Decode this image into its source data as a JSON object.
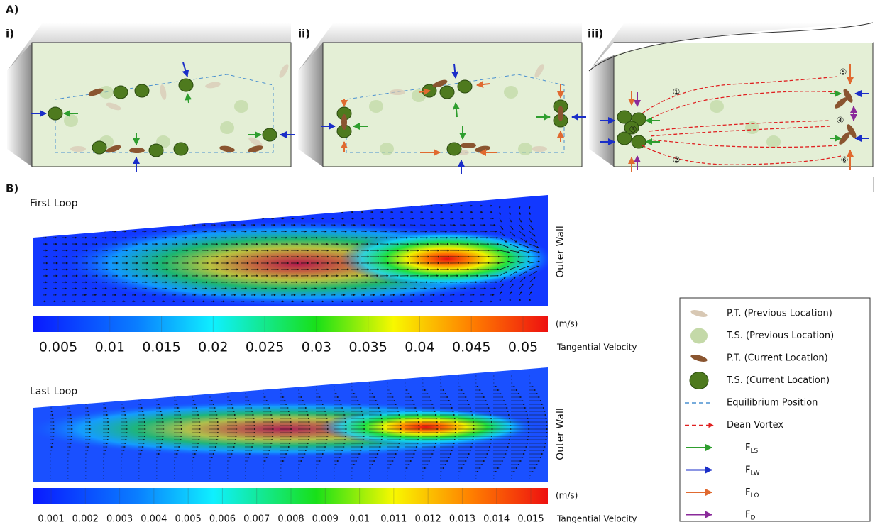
{
  "panel_a": {
    "label": "A)",
    "panels": [
      {
        "label": "i)"
      },
      {
        "label": "ii)"
      },
      {
        "label": "iii)",
        "markers": [
          "①",
          "②",
          "③",
          "④",
          "⑤",
          "⑥"
        ]
      }
    ]
  },
  "panel_b": {
    "label": "B)",
    "plots": [
      {
        "title": "First Loop",
        "wall_label": "Outer Wall",
        "unit": "(m/s)",
        "colorbar_label": "Tangential Velocity",
        "ticks": [
          0.005,
          0.01,
          0.015,
          0.02,
          0.025,
          0.03,
          0.035,
          0.04,
          0.045,
          0.05
        ]
      },
      {
        "title": "Last Loop",
        "wall_label": "Outer Wall",
        "unit": "(m/s)",
        "colorbar_label": "Tangential Velocity",
        "ticks": [
          0.001,
          0.002,
          0.003,
          0.004,
          0.005,
          0.006,
          0.007,
          0.008,
          0.009,
          0.01,
          0.011,
          0.012,
          0.013,
          0.014,
          0.015
        ]
      }
    ]
  },
  "legend": {
    "items": [
      {
        "text": "P.T. (Previous Location)"
      },
      {
        "text": "T.S. (Previous Location)"
      },
      {
        "text": "P.T. (Current Location)"
      },
      {
        "text": "T.S. (Current Location)"
      },
      {
        "text": "Equilibrium Position"
      },
      {
        "text": "Dean Vortex"
      },
      {
        "symbol": "F",
        "subscript": "LS"
      },
      {
        "symbol": "F",
        "subscript": "LW"
      },
      {
        "symbol": "F",
        "subscript": "LΩ"
      },
      {
        "symbol": "F",
        "subscript": "D"
      }
    ]
  }
}
